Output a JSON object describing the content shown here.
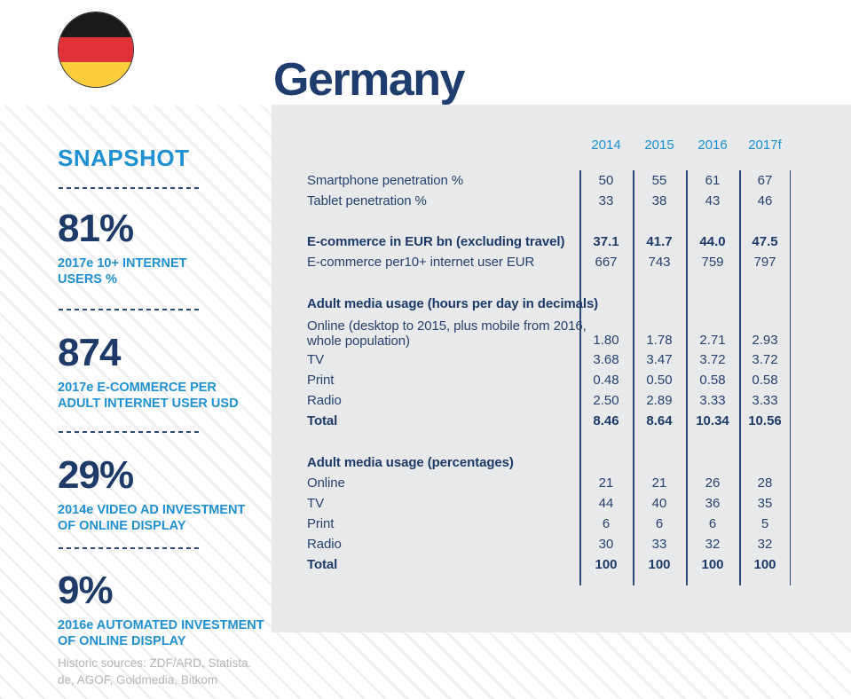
{
  "page": {
    "title": "Germany"
  },
  "flag": {
    "country": "Germany",
    "colors": {
      "black": "#1a1a1a",
      "red": "#e03138",
      "gold": "#fdce3c"
    }
  },
  "colors": {
    "navy_text": "#27426e",
    "navy_dark": "#1d3a68",
    "accent_blue": "#1f90d2",
    "panel_gray": "#e8e9ea",
    "source_gray": "#b5b5b7"
  },
  "snapshot": {
    "heading": "SNAPSHOT",
    "stats": [
      {
        "value": "81%",
        "lines": [
          "2017e 10+ INTERNET",
          "USERS %"
        ]
      },
      {
        "value": "874",
        "lines": [
          "2017e E-COMMERCE PER",
          "ADULT INTERNET USER USD"
        ]
      },
      {
        "value": "29%",
        "lines": [
          "2014e VIDEO AD INVESTMENT",
          "OF ONLINE DISPLAY"
        ]
      },
      {
        "value": "9%",
        "lines": [
          "2016e AUTOMATED INVESTMENT",
          "OF ONLINE DISPLAY"
        ]
      }
    ],
    "sources_lines": [
      "Historic sources: ZDF/ARD, Statista.",
      "de, AGOF, Goldmedia, Bitkom"
    ]
  },
  "table": {
    "years": [
      "2014",
      "2015",
      "2016",
      "2017f"
    ],
    "rows": [
      {
        "type": "data",
        "label": "Smartphone penetration %",
        "values": [
          "50",
          "55",
          "61",
          "67"
        ]
      },
      {
        "type": "data",
        "label": "Tablet penetration %",
        "values": [
          "33",
          "38",
          "43",
          "46"
        ]
      },
      {
        "type": "spacer"
      },
      {
        "type": "data-bold",
        "label": "E-commerce in EUR bn (excluding travel)",
        "values": [
          "37.1",
          "41.7",
          "44.0",
          "47.5"
        ]
      },
      {
        "type": "data",
        "label": "E-commerce per10+ internet user EUR",
        "values": [
          "667",
          "743",
          "759",
          "797"
        ]
      },
      {
        "type": "spacer"
      },
      {
        "type": "section",
        "label": "Adult media usage (hours per day in decimals)"
      },
      {
        "type": "data-2line",
        "label_lines": [
          "Online (desktop to 2015, plus mobile from 2016,",
          "whole population)"
        ],
        "values": [
          "1.80",
          "1.78",
          "2.71",
          "2.93"
        ]
      },
      {
        "type": "data",
        "label": "TV",
        "values": [
          "3.68",
          "3.47",
          "3.72",
          "3.72"
        ]
      },
      {
        "type": "data",
        "label": "Print",
        "values": [
          "0.48",
          "0.50",
          "0.58",
          "0.58"
        ]
      },
      {
        "type": "data",
        "label": "Radio",
        "values": [
          "2.50",
          "2.89",
          "3.33",
          "3.33"
        ]
      },
      {
        "type": "data-bold",
        "label": "Total",
        "values": [
          "8.46",
          "8.64",
          "10.34",
          "10.56"
        ]
      },
      {
        "type": "spacer"
      },
      {
        "type": "section",
        "label": "Adult media usage (percentages)"
      },
      {
        "type": "data",
        "label": "Online",
        "values": [
          "21",
          "21",
          "26",
          "28"
        ]
      },
      {
        "type": "data",
        "label": "TV",
        "values": [
          "44",
          "40",
          "36",
          "35"
        ]
      },
      {
        "type": "data",
        "label": "Print",
        "values": [
          "6",
          "6",
          "6",
          "5"
        ]
      },
      {
        "type": "data",
        "label": "Radio",
        "values": [
          "30",
          "33",
          "32",
          "32"
        ]
      },
      {
        "type": "data-bold",
        "label": "Total",
        "values": [
          "100",
          "100",
          "100",
          "100"
        ]
      }
    ]
  }
}
